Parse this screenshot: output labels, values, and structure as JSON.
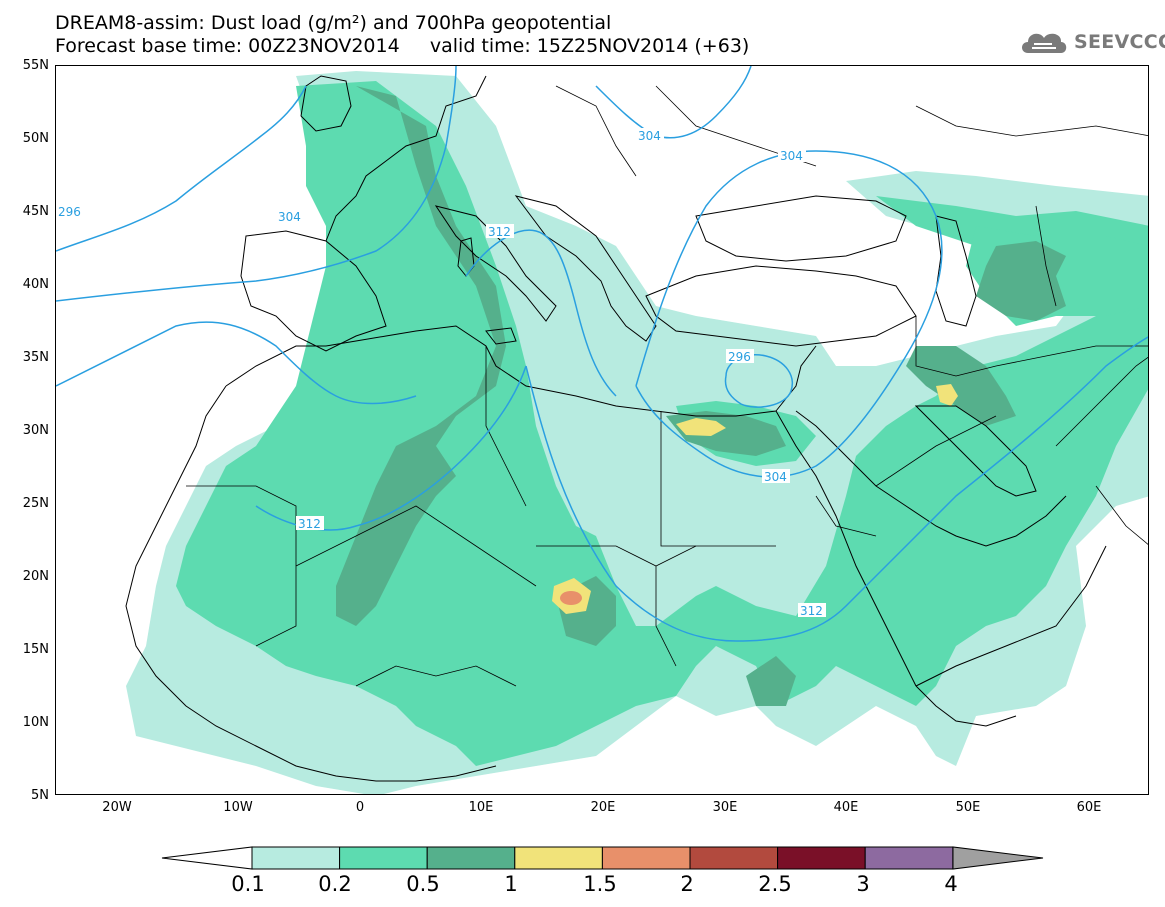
{
  "header": {
    "title_line_1": "DREAM8-assim: Dust load (g/m²) and 700hPa geopotential",
    "title_line_2": "Forecast base time: 00Z23NOV2014     valid time: 15Z25NOV2014 (+63)"
  },
  "logo": {
    "icon": "cloud-logo-icon",
    "text": "SEEVCCC"
  },
  "map": {
    "lat_labels": [
      "55N",
      "50N",
      "45N",
      "40N",
      "35N",
      "30N",
      "25N",
      "20N",
      "15N",
      "10N",
      "5N"
    ],
    "lon_labels": [
      "20W",
      "10W",
      "0",
      "10E",
      "20E",
      "30E",
      "40E",
      "50E",
      "60E"
    ],
    "contour_labels": [
      "296",
      "304",
      "312",
      "304",
      "304",
      "296",
      "304",
      "312",
      "312"
    ],
    "colors": {
      "dust_0_1": "#b7ebe0",
      "dust_0_2": "#5ddbb0",
      "dust_0_5": "#55b08c",
      "dust_1": "#f1e37a",
      "dust_1_5": "#e8906a",
      "dust_2": "#b24a3e",
      "dust_2_5": "#7a1028",
      "dust_3": "#8d6aa0",
      "dust_4": "#a0a0a0",
      "contour": "#2a9fe0",
      "coastline": "#000000"
    }
  },
  "colorbar": {
    "labels": [
      "0.1",
      "0.2",
      "0.5",
      "1",
      "1.5",
      "2",
      "2.5",
      "3",
      "4"
    ],
    "colors": [
      "#b7ebe0",
      "#5ddbb0",
      "#55b08c",
      "#f1e37a",
      "#e8906a",
      "#b24a3e",
      "#7a1028",
      "#8d6aa0"
    ],
    "under_color": "#ffffff",
    "over_color": "#a0a0a0"
  }
}
